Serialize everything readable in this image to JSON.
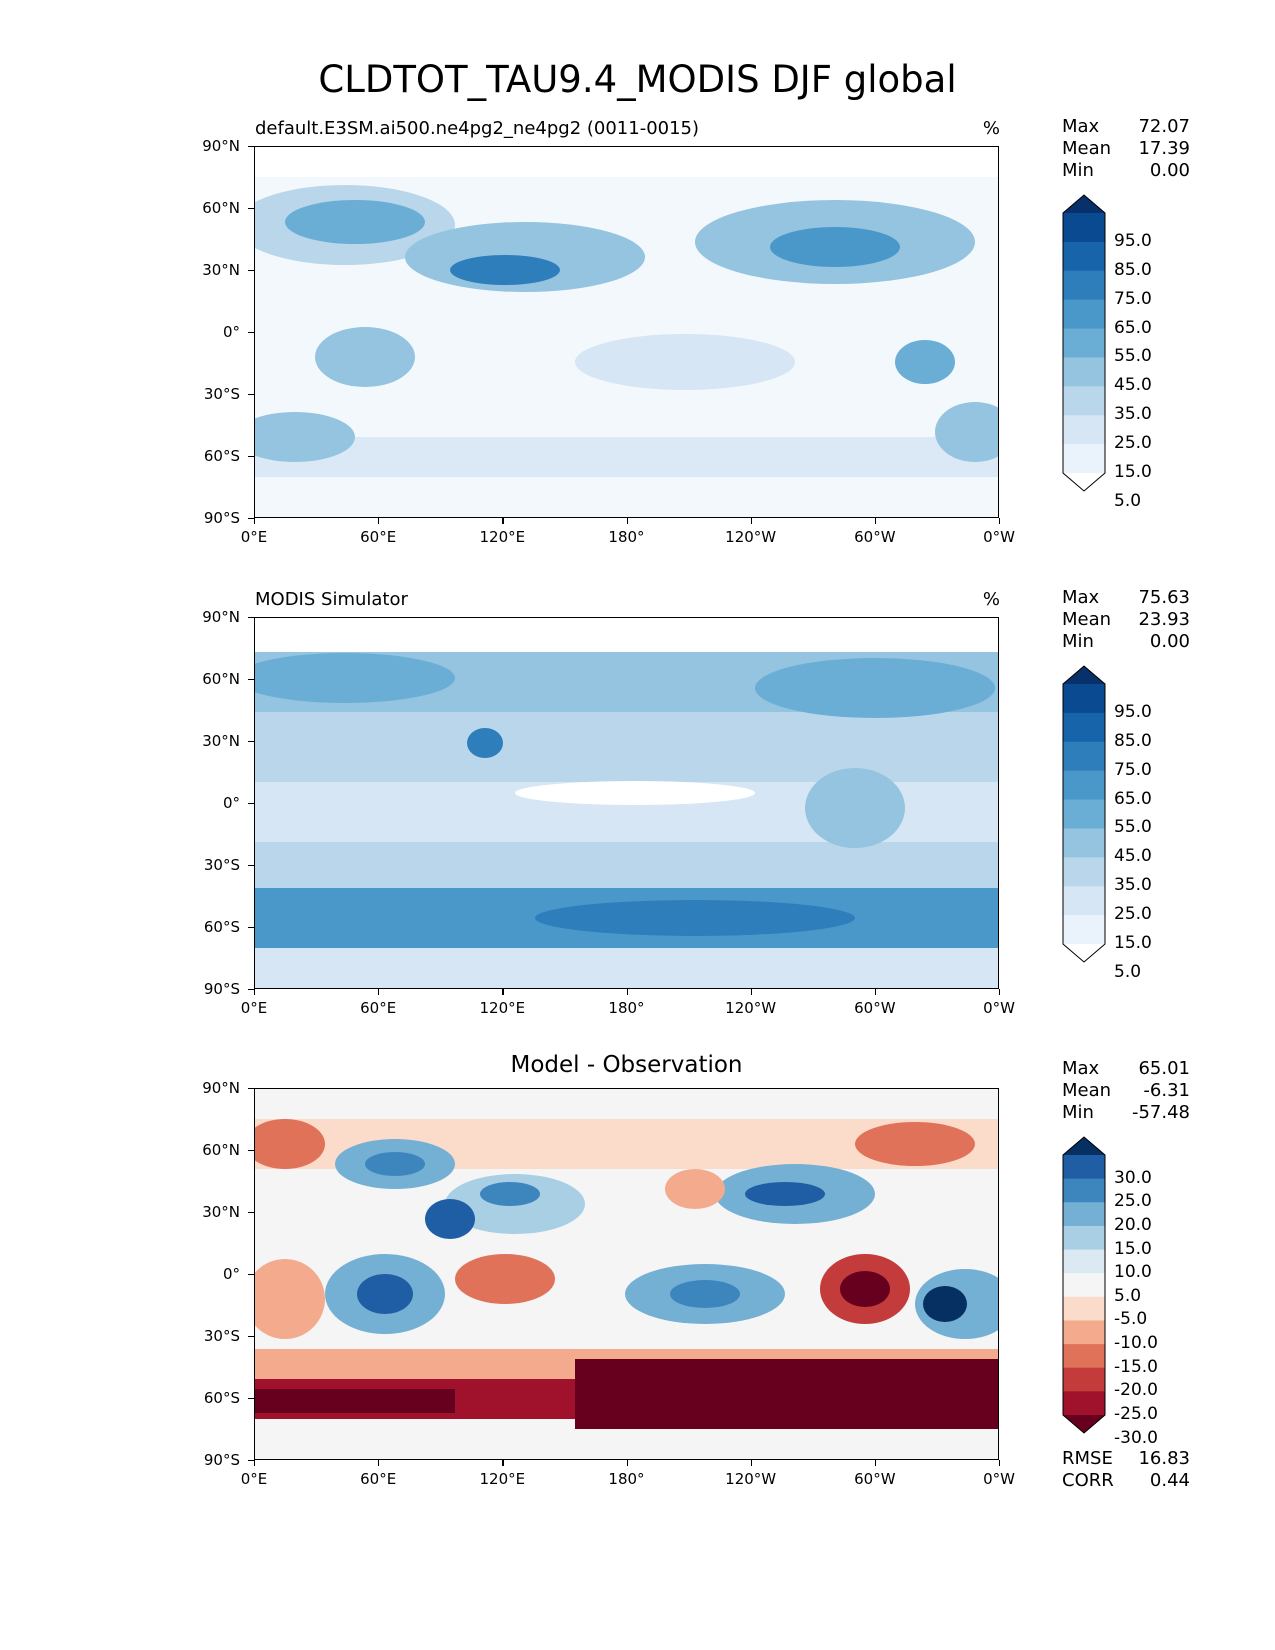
{
  "page_title": "CLDTOT_TAU9.4_MODIS DJF global",
  "axes": {
    "y_ticks": [
      "90°N",
      "60°N",
      "30°N",
      "0°",
      "30°S",
      "60°S",
      "90°S"
    ],
    "x_ticks": [
      "0°E",
      "60°E",
      "120°E",
      "180°",
      "120°W",
      "60°W",
      "0°W"
    ]
  },
  "panels": [
    {
      "title_left": "default.E3SM.ai500.ne4pg2_ne4pg2 (0011-0015)",
      "title_center": "",
      "units": "%",
      "stats": {
        "max_label": "Max",
        "max": "72.07",
        "mean_label": "Mean",
        "mean": "17.39",
        "min_label": "Min",
        "min": "0.00"
      },
      "colorbar": {
        "labels": [
          "95.0",
          "85.0",
          "75.0",
          "65.0",
          "55.0",
          "45.0",
          "35.0",
          "25.0",
          "15.0",
          "5.0"
        ],
        "colors": [
          "#08306b",
          "#0a4a90",
          "#1764ab",
          "#2e7ebc",
          "#4a98c9",
          "#6aaed6",
          "#94c4df",
          "#b9d6ea",
          "#d6e6f4",
          "#eaf2fb",
          "#ffffff"
        ]
      }
    },
    {
      "title_left": "MODIS Simulator",
      "title_center": "",
      "units": "%",
      "stats": {
        "max_label": "Max",
        "max": "75.63",
        "mean_label": "Mean",
        "mean": "23.93",
        "min_label": "Min",
        "min": "0.00"
      },
      "colorbar": {
        "labels": [
          "95.0",
          "85.0",
          "75.0",
          "65.0",
          "55.0",
          "45.0",
          "35.0",
          "25.0",
          "15.0",
          "5.0"
        ],
        "colors": [
          "#08306b",
          "#0a4a90",
          "#1764ab",
          "#2e7ebc",
          "#4a98c9",
          "#6aaed6",
          "#94c4df",
          "#b9d6ea",
          "#d6e6f4",
          "#eaf2fb",
          "#ffffff"
        ]
      }
    },
    {
      "title_left": "",
      "title_center": "Model - Observation",
      "units": "",
      "stats": {
        "max_label": "Max",
        "max": "65.01",
        "mean_label": "Mean",
        "mean": "-6.31",
        "min_label": "Min",
        "min": "-57.48"
      },
      "colorbar": {
        "labels": [
          "30.0",
          "25.0",
          "20.0",
          "15.0",
          "10.0",
          "5.0",
          "-5.0",
          "-10.0",
          "-15.0",
          "-20.0",
          "-25.0",
          "-30.0"
        ],
        "colors": [
          "#053061",
          "#1f5ea4",
          "#3d85bd",
          "#74b0d4",
          "#a9cfe5",
          "#dae9f2",
          "#f5f5f5",
          "#fbdccb",
          "#f4ab8d",
          "#e0725a",
          "#c33b3a",
          "#a0112b",
          "#67001f"
        ]
      },
      "error_stats": {
        "rmse_label": "RMSE",
        "rmse": "16.83",
        "corr_label": "CORR",
        "corr": "0.44"
      }
    }
  ]
}
